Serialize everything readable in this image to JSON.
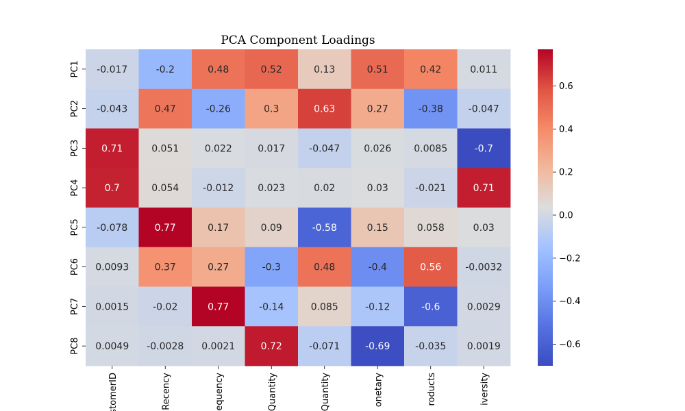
{
  "chart_data": {
    "type": "heatmap",
    "title": "PCA Component Loadings",
    "rows": [
      "PC1",
      "PC2",
      "PC3",
      "PC4",
      "PC5",
      "PC6",
      "PC7",
      "PC8"
    ],
    "columns": [
      "stomerID",
      "Recency",
      "equency",
      "Quantity",
      "Quantity",
      "onetary",
      "roducts",
      "iversity"
    ],
    "values": [
      [
        -0.017,
        -0.2,
        0.48,
        0.52,
        0.13,
        0.51,
        0.42,
        0.011
      ],
      [
        -0.043,
        0.47,
        -0.26,
        0.3,
        0.63,
        0.27,
        -0.38,
        -0.047
      ],
      [
        0.71,
        0.051,
        0.022,
        0.017,
        -0.047,
        0.026,
        0.0085,
        -0.7
      ],
      [
        0.7,
        0.054,
        -0.012,
        0.023,
        0.02,
        0.03,
        -0.021,
        0.71
      ],
      [
        -0.078,
        0.77,
        0.17,
        0.09,
        -0.58,
        0.15,
        0.058,
        0.03
      ],
      [
        0.0093,
        0.37,
        0.27,
        -0.3,
        0.48,
        -0.4,
        0.56,
        -0.0032
      ],
      [
        0.0015,
        -0.02,
        0.77,
        -0.14,
        0.085,
        -0.12,
        -0.6,
        0.0029
      ],
      [
        0.0049,
        -0.0028,
        0.0021,
        0.72,
        -0.071,
        -0.69,
        -0.035,
        0.0019
      ]
    ],
    "annotations": [
      [
        "-0.017",
        "-0.2",
        "0.48",
        "0.52",
        "0.13",
        "0.51",
        "0.42",
        "0.011"
      ],
      [
        "-0.043",
        "0.47",
        "-0.26",
        "0.3",
        "0.63",
        "0.27",
        "-0.38",
        "-0.047"
      ],
      [
        "0.71",
        "0.051",
        "0.022",
        "0.017",
        "-0.047",
        "0.026",
        "0.0085",
        "-0.7"
      ],
      [
        "0.7",
        "0.054",
        "-0.012",
        "0.023",
        "0.02",
        "0.03",
        "-0.021",
        "0.71"
      ],
      [
        "-0.078",
        "0.77",
        "0.17",
        "0.09",
        "-0.58",
        "0.15",
        "0.058",
        "0.03"
      ],
      [
        "0.0093",
        "0.37",
        "0.27",
        "-0.3",
        "0.48",
        "-0.4",
        "0.56",
        "-0.0032"
      ],
      [
        "0.0015",
        "-0.02",
        "0.77",
        "-0.14",
        "0.085",
        "-0.12",
        "-0.6",
        "0.0029"
      ],
      [
        "0.0049",
        "-0.0028",
        "0.0021",
        "0.72",
        "-0.071",
        "-0.69",
        "-0.035",
        "0.0019"
      ]
    ],
    "colormap": "coolwarm",
    "vmin": -0.7,
    "vmax": 0.77,
    "colorbar": {
      "ticks": [
        -0.6,
        -0.4,
        -0.2,
        0.0,
        0.2,
        0.4,
        0.6
      ],
      "tick_labels": [
        "−0.6",
        "−0.4",
        "−0.2",
        "0.0",
        "0.2",
        "0.4",
        "0.6"
      ]
    }
  }
}
